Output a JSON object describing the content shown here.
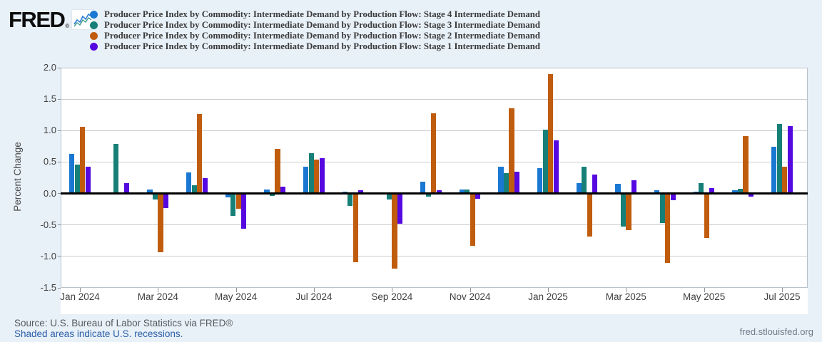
{
  "logo": {
    "text": "FRED",
    "reg": "®"
  },
  "colors": {
    "stage4": "#1a78d2",
    "stage3": "#167f78",
    "stage2": "#c05c0e",
    "stage1": "#5509e0"
  },
  "legend": {
    "items": [
      {
        "label": "Producer Price Index by Commodity: Intermediate Demand by Production Flow: Stage 4 Intermediate Demand",
        "color": "#1a78d2"
      },
      {
        "label": "Producer Price Index by Commodity: Intermediate Demand by Production Flow: Stage 3 Intermediate Demand",
        "color": "#167f78"
      },
      {
        "label": "Producer Price Index by Commodity: Intermediate Demand by Production Flow: Stage 2 Intermediate Demand",
        "color": "#c05c0e"
      },
      {
        "label": "Producer Price Index by Commodity: Intermediate Demand by Production Flow: Stage 1 Intermediate Demand",
        "color": "#5509e0"
      }
    ]
  },
  "chart_data": {
    "type": "bar",
    "categories": [
      "Jan 2024",
      "Feb 2024",
      "Mar 2024",
      "Apr 2024",
      "May 2024",
      "Jun 2024",
      "Jul 2024",
      "Aug 2024",
      "Sep 2024",
      "Oct 2024",
      "Nov 2024",
      "Dec 2024",
      "Jan 2025",
      "Feb 2025",
      "Mar 2025",
      "Apr 2025",
      "May 2025",
      "Jun 2025",
      "Jul 2025"
    ],
    "series": [
      {
        "name": "Producer Price Index by Commodity: Intermediate Demand by Production Flow: Stage 4 Intermediate Demand",
        "key": "stage4",
        "color": "#1a78d2",
        "values": [
          0.63,
          0.02,
          0.06,
          0.34,
          -0.06,
          0.06,
          0.43,
          0.03,
          0.01,
          0.19,
          0.06,
          0.43,
          0.4,
          0.17,
          0.15,
          0.05,
          0.03,
          0.05,
          0.74
        ]
      },
      {
        "name": "Producer Price Index by Commodity: Intermediate Demand by Production Flow: Stage 3 Intermediate Demand",
        "key": "stage3",
        "color": "#167f78",
        "values": [
          0.46,
          0.79,
          -0.1,
          0.13,
          -0.36,
          -0.04,
          0.64,
          -0.2,
          -0.1,
          -0.05,
          0.06,
          0.32,
          1.01,
          0.42,
          -0.53,
          -0.47,
          0.16,
          0.08,
          1.11
        ]
      },
      {
        "name": "Producer Price Index by Commodity: Intermediate Demand by Production Flow: Stage 2 Intermediate Demand",
        "key": "stage2",
        "color": "#c05c0e",
        "values": [
          1.06,
          0.01,
          -0.93,
          1.26,
          -0.24,
          0.71,
          0.54,
          -1.09,
          -1.19,
          1.27,
          -0.83,
          1.35,
          1.9,
          -0.69,
          -0.58,
          -1.1,
          -0.71,
          0.91,
          0.42
        ]
      },
      {
        "name": "Producer Price Index by Commodity: Intermediate Demand by Production Flow: Stage 1 Intermediate Demand",
        "key": "stage1",
        "color": "#5509e0",
        "values": [
          0.43,
          0.17,
          -0.23,
          0.24,
          -0.56,
          0.11,
          0.56,
          0.05,
          -0.48,
          0.05,
          -0.08,
          0.35,
          0.85,
          0.3,
          0.21,
          -0.11,
          0.09,
          -0.05,
          1.07
        ]
      }
    ],
    "ylabel": "Percent Change",
    "ylim": [
      -1.5,
      2.0
    ],
    "ytick_step": 0.5,
    "ytick_labels": [
      "2.0",
      "1.5",
      "1.0",
      "0.5",
      "0.0",
      "-0.5",
      "-1.0",
      "-1.5"
    ],
    "xtick_indices": [
      0,
      2,
      4,
      6,
      8,
      10,
      12,
      14,
      16,
      18
    ],
    "xtick_labels": [
      "Jan 2024",
      "Mar 2024",
      "May 2024",
      "Jul 2024",
      "Sep 2024",
      "Nov 2024",
      "Jan 2025",
      "Mar 2025",
      "May 2025",
      "Jul 2025"
    ],
    "grid": "horizontal",
    "legend_position": "top"
  },
  "footer": {
    "source": "Source: U.S. Bureau of Labor Statistics via FRED®",
    "recession_note": "Shaded areas indicate U.S. recessions.",
    "site": "fred.stlouisfed.org"
  }
}
